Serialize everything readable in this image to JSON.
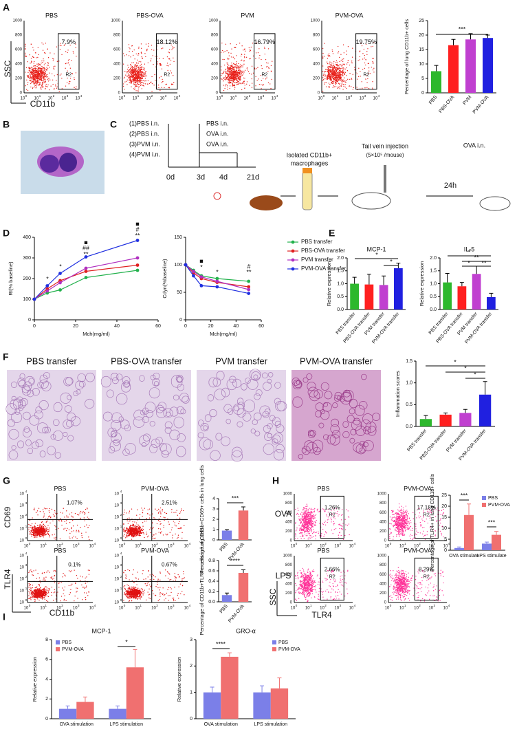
{
  "panel_letters": [
    "A",
    "B",
    "C",
    "D",
    "E",
    "F",
    "G",
    "H",
    "I"
  ],
  "flow": {
    "linear_ticks": [
      "0",
      "200",
      "400",
      "600",
      "800",
      "1000"
    ],
    "log_base": "10",
    "log_exps": [
      "0",
      "1",
      "2",
      "3",
      "4"
    ]
  },
  "panel_a": {
    "y_label": "SSC",
    "x_label": "CD11b",
    "plots": [
      {
        "title": "PBS",
        "gate": "7.9%",
        "region": "R2"
      },
      {
        "title": "PBS-OVA",
        "gate": "18.12%",
        "region": "R2"
      },
      {
        "title": "PVM",
        "gate": "16.79%",
        "region": "R2"
      },
      {
        "title": "PVM-OVA",
        "gate": "19.75%",
        "region": "R2"
      }
    ]
  },
  "panel_c": {
    "groups": [
      "(1)PBS i.n.",
      "(2)PBS i.n.",
      "(3)PVM i.n.",
      "(4)PVM i.n."
    ],
    "challenges": [
      "PBS i.n.",
      "OVA i.n.",
      "OVA i.n."
    ],
    "days": [
      "0d",
      "3d",
      "4d",
      "21d"
    ],
    "isolate": [
      "Isolated CD11b+",
      "macrophages"
    ],
    "injection": [
      "Tail vein injection",
      "(5×10⁵ /mouse)"
    ],
    "wait": "24h",
    "final": "OVA i.n."
  },
  "panel_f": {
    "titles": [
      "PBS transfer",
      "PBS-OVA transfer",
      "PVM transfer",
      "PVM-OVA transfer"
    ]
  },
  "panel_g": {
    "y_labels": [
      "CD69",
      "TLR4"
    ],
    "x_label": "CD11b",
    "plots": [
      {
        "title": "PBS",
        "gate": "1.07%"
      },
      {
        "title": "PVM-OVA",
        "gate": "2.51%"
      },
      {
        "title": "PBS",
        "gate": "0.1%"
      },
      {
        "title": "PVM-OVA",
        "gate": "0.67%"
      }
    ]
  },
  "panel_h": {
    "rows": [
      "OVA",
      "LPS"
    ],
    "y_label": "SSC",
    "x_label": "TLR4",
    "plots": [
      {
        "title": "PBS",
        "gate": "1.26%",
        "region": "R2"
      },
      {
        "title": "PVM-OVA",
        "gate": "17.18%",
        "region": "R2"
      },
      {
        "title": "PBS",
        "gate": "2.66%",
        "region": "R2"
      },
      {
        "title": "PVM-OVA",
        "gate": "8.29%",
        "region": "R2"
      }
    ]
  },
  "chart_data": [
    {
      "type": "bar",
      "categories": [
        "PBS",
        "PBS-OVA",
        "PVM",
        "PVM-OVA"
      ],
      "values": [
        7.5,
        16.5,
        18.5,
        19
      ],
      "errors": [
        2,
        2,
        2,
        1
      ],
      "colors": [
        "#2db82d",
        "#ff2020",
        "#c040d0",
        "#2020e0"
      ],
      "ylabel": "Percentage of lung CD11b+ cells",
      "ylim": [
        0,
        25
      ],
      "yticks": [
        0,
        5,
        10,
        15,
        20,
        25
      ],
      "annotations": [
        "***"
      ]
    },
    {
      "type": "line",
      "x": [
        0,
        6.25,
        12.5,
        25,
        50
      ],
      "xlim": [
        0,
        60
      ],
      "xticks": [
        0,
        20,
        40,
        60
      ],
      "xlabel": "Mch(mg/ml)",
      "ylabel": "RI(% baseline)",
      "ylim": [
        0,
        400
      ],
      "yticks": [
        0,
        100,
        200,
        300,
        400
      ],
      "series": [
        {
          "name": "PBS transfer",
          "color": "#22b14c",
          "values": [
            100,
            130,
            145,
            205,
            240
          ]
        },
        {
          "name": "PBS-OVA transfer",
          "color": "#e02020",
          "values": [
            100,
            150,
            190,
            235,
            265
          ]
        },
        {
          "name": "PVM transfer",
          "color": "#b030c0",
          "values": [
            100,
            140,
            180,
            250,
            300
          ]
        },
        {
          "name": "PVM-OVA transfer",
          "color": "#2030e0",
          "values": [
            100,
            165,
            225,
            305,
            385
          ]
        }
      ],
      "annotations": [
        "*",
        "*",
        "**",
        "##",
        "■",
        "**",
        "#",
        "■"
      ]
    },
    {
      "type": "line",
      "x": [
        0,
        6.25,
        12.5,
        25,
        50
      ],
      "xlim": [
        0,
        60
      ],
      "xticks": [
        0,
        20,
        40,
        60
      ],
      "xlabel": "Mch(mg/ml)",
      "ylabel": "Cdyn(%baseline)",
      "ylim": [
        0,
        150
      ],
      "yticks": [
        0,
        50,
        100,
        150
      ],
      "legend": "right",
      "series": [
        {
          "name": "PBS transfer",
          "color": "#22b14c",
          "values": [
            100,
            90,
            80,
            75,
            70
          ]
        },
        {
          "name": "PBS-OVA transfer",
          "color": "#e02020",
          "values": [
            100,
            85,
            75,
            68,
            60
          ]
        },
        {
          "name": "PVM transfer",
          "color": "#b030c0",
          "values": [
            100,
            88,
            78,
            70,
            55
          ]
        },
        {
          "name": "PVM-OVA transfer",
          "color": "#2030e0",
          "values": [
            100,
            80,
            62,
            60,
            48
          ]
        }
      ],
      "annotations": [
        "*",
        "■",
        "*",
        "**",
        "#"
      ]
    },
    {
      "type": "bar",
      "title": "MCP-1",
      "categories": [
        "PBS transfer",
        "PBS-OVA transfer",
        "PVM transfer",
        "PVM-OVA transfer"
      ],
      "values": [
        1.0,
        0.97,
        0.95,
        1.6
      ],
      "errors": [
        0.25,
        0.4,
        0.35,
        0.2
      ],
      "colors": [
        "#2db82d",
        "#ff2020",
        "#c040d0",
        "#2020e0"
      ],
      "ylabel": "Relative expression",
      "ylim": [
        0,
        2
      ],
      "yticks": [
        {
          "value": 0,
          "label": "0.0"
        },
        0.5,
        {
          "value": 1,
          "label": "1.0"
        },
        1.5,
        {
          "value": 2,
          "label": "2.0"
        }
      ],
      "annotations": [
        "*",
        "*"
      ]
    },
    {
      "type": "bar",
      "title": "IL-5",
      "categories": [
        "PBS transfer",
        "PBS-OVA transfer",
        "PVM transfer",
        "PVM-OVA transfer"
      ],
      "values": [
        1.05,
        0.9,
        1.38,
        0.48
      ],
      "errors": [
        0.35,
        0.15,
        0.3,
        0.15
      ],
      "colors": [
        "#2db82d",
        "#ff2020",
        "#c040d0",
        "#2020e0"
      ],
      "ylabel": "Relative expression",
      "ylim": [
        0,
        2
      ],
      "yticks": [
        {
          "value": 0,
          "label": "0.0"
        },
        0.5,
        {
          "value": 1,
          "label": "1.0"
        },
        1.5,
        {
          "value": 2,
          "label": "2.0"
        }
      ],
      "annotations": [
        "*",
        "**",
        "*",
        "**"
      ]
    },
    {
      "type": "bar",
      "categories": [
        "PBS transfer",
        "PBS-OVA transfer",
        "PVM transfer",
        "PVM-OVA transfer"
      ],
      "values": [
        0.17,
        0.27,
        0.31,
        0.73
      ],
      "errors": [
        0.08,
        0.04,
        0.08,
        0.3
      ],
      "colors": [
        "#2db82d",
        "#ff2020",
        "#c040d0",
        "#2020e0"
      ],
      "ylabel": "Inflammation scores",
      "ylim": [
        0,
        1.5
      ],
      "yticks": [
        {
          "value": 0,
          "label": "0.0"
        },
        0.5,
        {
          "value": 1,
          "label": "1.0"
        },
        1.5
      ],
      "annotations": [
        "*",
        "*",
        "*"
      ]
    },
    {
      "type": "bar",
      "categories": [
        "PBS",
        "PVM-OVA"
      ],
      "values": [
        0.9,
        2.85
      ],
      "errors": [
        0.1,
        0.35
      ],
      "colors": [
        "#7b7fe8",
        "#f07070"
      ],
      "ylabel": "Percentage of CD11b+CD69+ cells in lung cells",
      "ylim": [
        0,
        4
      ],
      "yticks": [
        0,
        1,
        2,
        3,
        4
      ],
      "annotations": [
        "***"
      ]
    },
    {
      "type": "bar",
      "categories": [
        "PBS",
        "PVM-OVA"
      ],
      "values": [
        0.13,
        0.56
      ],
      "errors": [
        0.04,
        0.06
      ],
      "colors": [
        "#7b7fe8",
        "#f07070"
      ],
      "ylabel": "Percentage of CD11b+TLR4+ cells in lung cells",
      "ylim": [
        0,
        0.8
      ],
      "yticks": [
        {
          "value": 0,
          "label": "0.0"
        },
        0.2,
        0.4,
        0.6,
        0.8
      ],
      "annotations": [
        "****"
      ]
    },
    {
      "type": "bar",
      "categories": [
        "OVA stimulate",
        "LPS stimulate"
      ],
      "series": [
        {
          "name": "PBS",
          "color": "#7b7fe8",
          "values": [
            1,
            3
          ],
          "errors": [
            0.5,
            0.7
          ]
        },
        {
          "name": "PVM-OVA",
          "color": "#f07070",
          "values": [
            16,
            7
          ],
          "errors": [
            5,
            1.5
          ]
        }
      ],
      "legend": "upper right",
      "ylabel": "Percentage of TLR4+ in lung CD11b+ cells",
      "ylim": [
        0,
        25
      ],
      "yticks": [
        0,
        5,
        10,
        15,
        20,
        25
      ],
      "annotations": [
        "***",
        "***"
      ]
    },
    {
      "type": "bar",
      "title": "MCP-1",
      "categories": [
        "OVA stimulation",
        "LPS stimulation"
      ],
      "series": [
        {
          "name": "PBS",
          "color": "#7b7fe8",
          "values": [
            1,
            1
          ],
          "errors": [
            0.3,
            0.3
          ]
        },
        {
          "name": "PVM-OVA",
          "color": "#f07070",
          "values": [
            1.7,
            5.2
          ],
          "errors": [
            0.5,
            1.8
          ]
        }
      ],
      "legend": "upper left",
      "ylabel": "Relative expression",
      "ylim": [
        0,
        8
      ],
      "yticks": [
        0,
        2,
        4,
        6,
        8
      ],
      "annotations": [
        "*"
      ]
    },
    {
      "type": "bar",
      "title": "GRO-α",
      "categories": [
        "OVA stimulation",
        "LPS stimulation"
      ],
      "series": [
        {
          "name": "PBS",
          "color": "#7b7fe8",
          "values": [
            1,
            1
          ],
          "errors": [
            0.2,
            0.25
          ]
        },
        {
          "name": "PVM-OVA",
          "color": "#f07070",
          "values": [
            2.35,
            1.15
          ],
          "errors": [
            0.15,
            0.4
          ]
        }
      ],
      "legend": "upper right",
      "ylabel": "Relative expression",
      "ylim": [
        0,
        3
      ],
      "yticks": [
        0,
        1,
        2,
        3
      ],
      "annotations": [
        "****"
      ]
    }
  ]
}
